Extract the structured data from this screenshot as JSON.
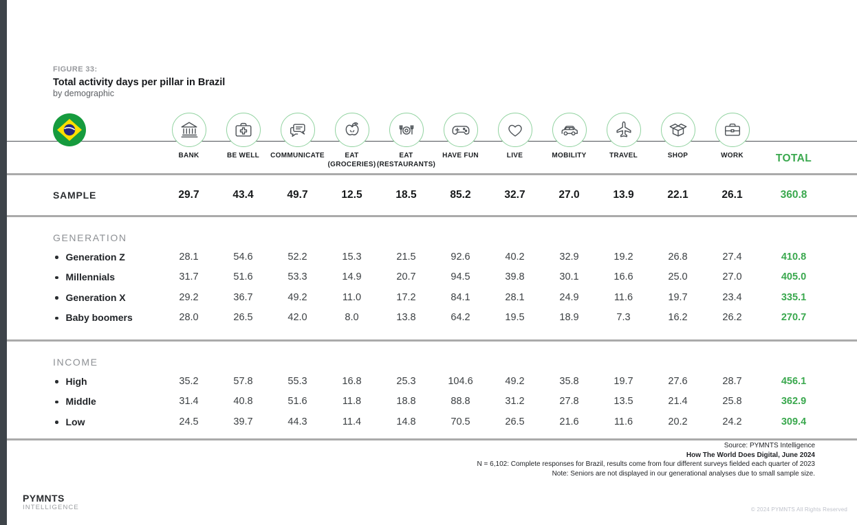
{
  "colors": {
    "accent_green": "#3aa84e",
    "circle_border_green": "#90d29f",
    "edge_bar": "#3e444a"
  },
  "figure": {
    "label": "FIGURE 33:",
    "title": "Total activity days per pillar in Brazil",
    "subtitle": "by demographic"
  },
  "flag": "brazil-flag",
  "columns": [
    {
      "icon": "bank-icon",
      "label": "BANK"
    },
    {
      "icon": "first-aid-kit-icon",
      "label": "BE WELL"
    },
    {
      "icon": "chat-bubbles-icon",
      "label": "COMMUNICATE"
    },
    {
      "icon": "apple-icon",
      "label": "EAT",
      "sublabel": "(GROCERIES)"
    },
    {
      "icon": "plate-cutlery-icon",
      "label": "EAT",
      "sublabel": "(RESTAURANTS)"
    },
    {
      "icon": "game-controller-icon",
      "label": "HAVE FUN"
    },
    {
      "icon": "heart-icon",
      "label": "LIVE"
    },
    {
      "icon": "car-icon",
      "label": "MOBILITY"
    },
    {
      "icon": "airplane-icon",
      "label": "TRAVEL"
    },
    {
      "icon": "open-box-icon",
      "label": "SHOP"
    },
    {
      "icon": "briefcase-icon",
      "label": "WORK"
    }
  ],
  "total_label": "TOTAL",
  "sample": {
    "label": "SAMPLE",
    "values": [
      "29.7",
      "43.4",
      "49.7",
      "12.5",
      "18.5",
      "85.2",
      "32.7",
      "27.0",
      "13.9",
      "22.1",
      "26.1"
    ],
    "total": "360.8"
  },
  "sections": [
    {
      "header": "GENERATION",
      "rows": [
        {
          "label": "Generation Z",
          "values": [
            "28.1",
            "54.6",
            "52.2",
            "15.3",
            "21.5",
            "92.6",
            "40.2",
            "32.9",
            "19.2",
            "26.8",
            "27.4"
          ],
          "total": "410.8"
        },
        {
          "label": "Millennials",
          "values": [
            "31.7",
            "51.6",
            "53.3",
            "14.9",
            "20.7",
            "94.5",
            "39.8",
            "30.1",
            "16.6",
            "25.0",
            "27.0"
          ],
          "total": "405.0"
        },
        {
          "label": "Generation X",
          "values": [
            "29.2",
            "36.7",
            "49.2",
            "11.0",
            "17.2",
            "84.1",
            "28.1",
            "24.9",
            "11.6",
            "19.7",
            "23.4"
          ],
          "total": "335.1"
        },
        {
          "label": "Baby boomers",
          "values": [
            "28.0",
            "26.5",
            "42.0",
            "8.0",
            "13.8",
            "64.2",
            "19.5",
            "18.9",
            "7.3",
            "16.2",
            "26.2"
          ],
          "total": "270.7"
        }
      ]
    },
    {
      "header": "INCOME",
      "rows": [
        {
          "label": "High",
          "values": [
            "35.2",
            "57.8",
            "55.3",
            "16.8",
            "25.3",
            "104.6",
            "49.2",
            "35.8",
            "19.7",
            "27.6",
            "28.7"
          ],
          "total": "456.1"
        },
        {
          "label": "Middle",
          "values": [
            "31.4",
            "40.8",
            "51.6",
            "11.8",
            "18.8",
            "88.8",
            "31.2",
            "27.8",
            "13.5",
            "21.4",
            "25.8"
          ],
          "total": "362.9"
        },
        {
          "label": "Low",
          "values": [
            "24.5",
            "39.7",
            "44.3",
            "11.4",
            "14.8",
            "70.5",
            "26.5",
            "21.6",
            "11.6",
            "20.2",
            "24.2"
          ],
          "total": "309.4"
        }
      ]
    }
  ],
  "footnotes": [
    {
      "text": "Source: PYMNTS Intelligence",
      "bold": false
    },
    {
      "text": "How The World Does Digital, June 2024",
      "bold": true
    },
    {
      "text": "N = 6,102: Complete responses for Brazil, results come from four different surveys fielded each quarter of 2023",
      "bold": false
    },
    {
      "text": "Note: Seniors are not displayed in our generational analyses due to small sample size.",
      "bold": false
    }
  ],
  "logo": {
    "line1": "PYMNTS",
    "line2": "INTELLIGENCE"
  },
  "copyright": "© 2024 PYMNTS All Rights Reserved",
  "chart_data": {
    "type": "table",
    "title": "Figure 33: Total activity days per pillar in Brazil, by demographic",
    "categories": [
      "Bank",
      "Be well",
      "Communicate",
      "Eat (groceries)",
      "Eat (restaurants)",
      "Have fun",
      "Live",
      "Mobility",
      "Travel",
      "Shop",
      "Work",
      "Total"
    ],
    "series": [
      {
        "name": "Sample",
        "group": "Sample",
        "values": [
          29.7,
          43.4,
          49.7,
          12.5,
          18.5,
          85.2,
          32.7,
          27.0,
          13.9,
          22.1,
          26.1,
          360.8
        ]
      },
      {
        "name": "Generation Z",
        "group": "Generation",
        "values": [
          28.1,
          54.6,
          52.2,
          15.3,
          21.5,
          92.6,
          40.2,
          32.9,
          19.2,
          26.8,
          27.4,
          410.8
        ]
      },
      {
        "name": "Millennials",
        "group": "Generation",
        "values": [
          31.7,
          51.6,
          53.3,
          14.9,
          20.7,
          94.5,
          39.8,
          30.1,
          16.6,
          25.0,
          27.0,
          405.0
        ]
      },
      {
        "name": "Generation X",
        "group": "Generation",
        "values": [
          29.2,
          36.7,
          49.2,
          11.0,
          17.2,
          84.1,
          28.1,
          24.9,
          11.6,
          19.7,
          23.4,
          335.1
        ]
      },
      {
        "name": "Baby boomers",
        "group": "Generation",
        "values": [
          28.0,
          26.5,
          42.0,
          8.0,
          13.8,
          64.2,
          19.5,
          18.9,
          7.3,
          16.2,
          26.2,
          270.7
        ]
      },
      {
        "name": "High",
        "group": "Income",
        "values": [
          35.2,
          57.8,
          55.3,
          16.8,
          25.3,
          104.6,
          49.2,
          35.8,
          19.7,
          27.6,
          28.7,
          456.1
        ]
      },
      {
        "name": "Middle",
        "group": "Income",
        "values": [
          31.4,
          40.8,
          51.6,
          11.8,
          18.8,
          88.8,
          31.2,
          27.8,
          13.5,
          21.4,
          25.8,
          362.9
        ]
      },
      {
        "name": "Low",
        "group": "Income",
        "values": [
          24.5,
          39.7,
          44.3,
          11.4,
          14.8,
          70.5,
          26.5,
          21.6,
          11.6,
          20.2,
          24.2,
          309.4
        ]
      }
    ]
  }
}
